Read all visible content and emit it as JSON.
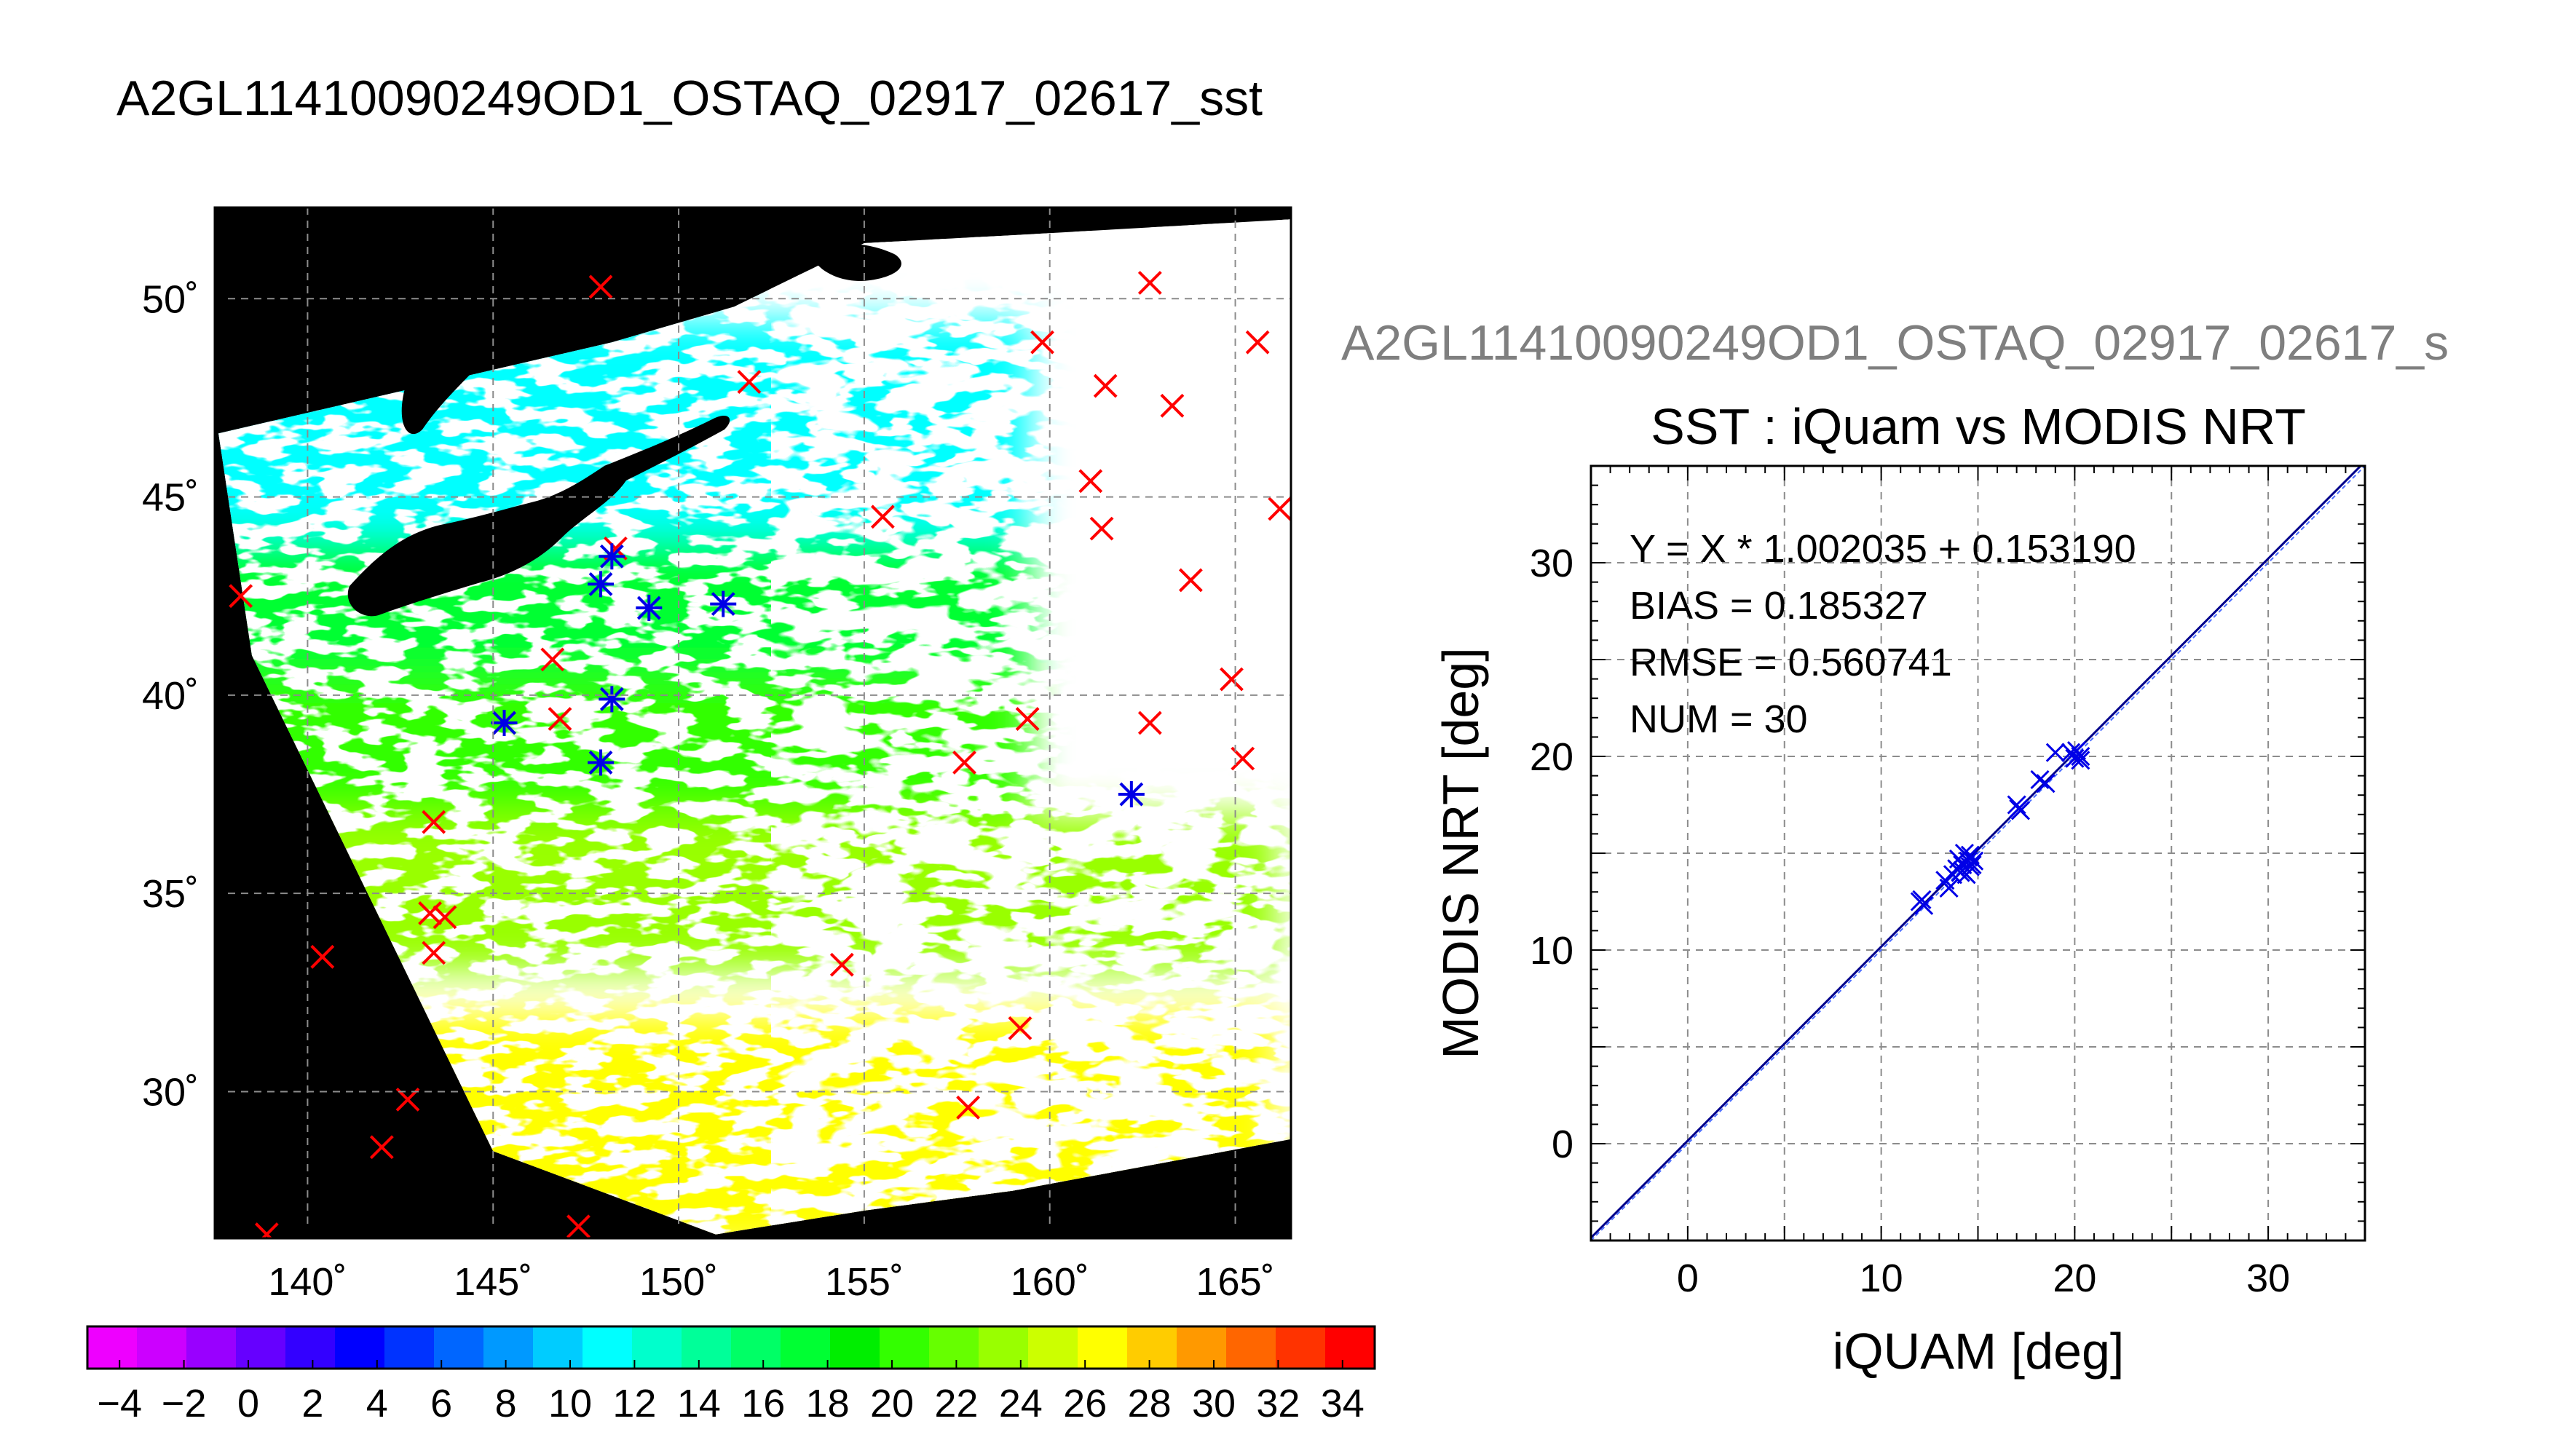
{
  "main_title": "A2GL11410090249OD1_OSTAQ_02917_02617_sst",
  "scatter_file_title": "A2GL11410090249OD1_OSTAQ_02917_02617_s",
  "colors": {
    "land": "#000000",
    "cloud": "#ffffff",
    "grid": "#8c8c8c",
    "marker_red": "#ff0000",
    "marker_blue": "#0000e6",
    "scatter_line": "#00008b"
  },
  "chart_data": [
    {
      "type": "heatmap",
      "title": "",
      "xlabel": "",
      "ylabel": "",
      "xlim": [
        137.5,
        166.5
      ],
      "ylim": [
        26.3,
        52.3
      ],
      "x_ticks": [
        140,
        145,
        150,
        155,
        160,
        165
      ],
      "y_ticks": [
        30,
        35,
        40,
        45,
        50
      ],
      "x_tick_labels": [
        "140˚",
        "145˚",
        "150˚",
        "155˚",
        "160˚",
        "165˚"
      ],
      "y_tick_labels": [
        "30˚",
        "35˚",
        "40˚",
        "45˚",
        "50˚"
      ],
      "grid": true,
      "swath": [
        [
          137.6,
          46.6
        ],
        [
          148.2,
          48.9
        ],
        [
          151.5,
          49.8
        ],
        [
          155.0,
          51.4
        ],
        [
          159.0,
          51.6
        ],
        [
          166.5,
          52.0
        ],
        [
          166.5,
          28.8
        ],
        [
          159.0,
          27.5
        ],
        [
          155.0,
          27.0
        ],
        [
          151.0,
          26.4
        ],
        [
          145.0,
          28.5
        ],
        [
          138.5,
          41.0
        ]
      ],
      "field_colorbar": {
        "ticks": [
          -4,
          -2,
          0,
          2,
          4,
          6,
          8,
          10,
          12,
          14,
          16,
          18,
          20,
          22,
          24,
          26,
          28,
          30,
          32,
          34
        ],
        "tick_labels": [
          "−4",
          "−2",
          "0",
          "2",
          "4",
          "6",
          "8",
          "10",
          "12",
          "14",
          "16",
          "18",
          "20",
          "22",
          "24",
          "26",
          "28",
          "30",
          "32",
          "34"
        ],
        "min": -5,
        "max": 35,
        "colors": [
          "#ee00ff",
          "#cc00ff",
          "#9900ff",
          "#6600ff",
          "#3300ff",
          "#0000ff",
          "#0033ff",
          "#0066ff",
          "#0099ff",
          "#00ccff",
          "#00ffff",
          "#00ffcc",
          "#00ff99",
          "#00ff66",
          "#00ff33",
          "#00ee00",
          "#33ff00",
          "#66ff00",
          "#99ff00",
          "#ccff00",
          "#ffff00",
          "#ffcc00",
          "#ff9900",
          "#ff6600",
          "#ff3300",
          "#ff0000"
        ]
      },
      "field_bands": [
        {
          "lat_top": 49.5,
          "lat_bot": 44.0,
          "sst": 11
        },
        {
          "lat_top": 44.0,
          "lat_bot": 40.5,
          "sst": 17
        },
        {
          "lat_top": 40.5,
          "lat_bot": 37.0,
          "sst": 21
        },
        {
          "lat_top": 37.0,
          "lat_bot": 33.0,
          "sst": 24
        },
        {
          "lat_top": 32.0,
          "lat_bot": 26.0,
          "sst": 27
        }
      ],
      "markers_red": [
        [
          138.2,
          42.5
        ],
        [
          147.9,
          50.3
        ],
        [
          151.9,
          47.9
        ],
        [
          159.8,
          48.9
        ],
        [
          161.5,
          47.8
        ],
        [
          162.7,
          50.4
        ],
        [
          163.3,
          47.3
        ],
        [
          165.6,
          48.9
        ],
        [
          166.2,
          44.7
        ],
        [
          161.1,
          45.4
        ],
        [
          161.4,
          44.2
        ],
        [
          155.5,
          44.5
        ],
        [
          163.8,
          42.9
        ],
        [
          148.3,
          43.7
        ],
        [
          146.6,
          40.9
        ],
        [
          146.8,
          39.4
        ],
        [
          145.3,
          39.3
        ],
        [
          157.7,
          38.3
        ],
        [
          159.4,
          39.4
        ],
        [
          162.7,
          39.3
        ],
        [
          164.9,
          40.4
        ],
        [
          165.2,
          38.4
        ],
        [
          143.4,
          36.8
        ],
        [
          143.3,
          34.5
        ],
        [
          143.7,
          34.4
        ],
        [
          143.4,
          33.5
        ],
        [
          140.4,
          33.4
        ],
        [
          154.4,
          33.2
        ],
        [
          159.2,
          31.6
        ],
        [
          157.8,
          29.6
        ],
        [
          142.7,
          29.8
        ],
        [
          142.0,
          28.6
        ],
        [
          138.9,
          26.4
        ],
        [
          147.3,
          26.6
        ]
      ],
      "markers_blue": [
        [
          148.2,
          43.5
        ],
        [
          147.9,
          42.8
        ],
        [
          149.2,
          42.2
        ],
        [
          151.2,
          42.3
        ],
        [
          145.3,
          39.3
        ],
        [
          148.2,
          39.9
        ],
        [
          147.9,
          38.3
        ],
        [
          162.2,
          37.5
        ]
      ]
    },
    {
      "type": "scatter",
      "title": "SST : iQuam vs MODIS NRT",
      "xlabel": "iQUAM [deg]",
      "ylabel": "MODIS NRT [deg]",
      "xlim": [
        -5,
        35
      ],
      "ylim": [
        -5,
        35
      ],
      "x_ticks": [
        0,
        10,
        20,
        30
      ],
      "y_ticks": [
        0,
        10,
        20,
        30
      ],
      "grid": true,
      "annotations": [
        "Y = X * 1.002035 + 0.153190",
        "BIAS = 0.185327",
        "RMSE = 0.560741",
        "NUM = 30"
      ],
      "fit": {
        "slope": 1.002035,
        "intercept": 0.15319
      },
      "points": [
        [
          12.0,
          12.5
        ],
        [
          12.2,
          12.3
        ],
        [
          13.3,
          13.6
        ],
        [
          13.5,
          13.2
        ],
        [
          13.7,
          13.9
        ],
        [
          13.9,
          14.2
        ],
        [
          14.0,
          14.7
        ],
        [
          14.1,
          14.0
        ],
        [
          14.2,
          14.4
        ],
        [
          14.3,
          15.0
        ],
        [
          14.4,
          13.9
        ],
        [
          14.5,
          14.6
        ],
        [
          14.6,
          14.3
        ],
        [
          14.6,
          14.9
        ],
        [
          14.7,
          14.4
        ],
        [
          14.8,
          14.6
        ],
        [
          14.5,
          14.8
        ],
        [
          17.0,
          17.5
        ],
        [
          17.2,
          17.2
        ],
        [
          18.2,
          18.8
        ],
        [
          18.5,
          18.6
        ],
        [
          19.0,
          20.2
        ],
        [
          19.8,
          20.2
        ],
        [
          20.0,
          19.9
        ],
        [
          20.1,
          20.3
        ],
        [
          20.3,
          20.0
        ],
        [
          20.3,
          19.8
        ],
        [
          12.1,
          12.6
        ],
        [
          14.2,
          14.1
        ],
        [
          17.1,
          17.3
        ]
      ]
    }
  ]
}
